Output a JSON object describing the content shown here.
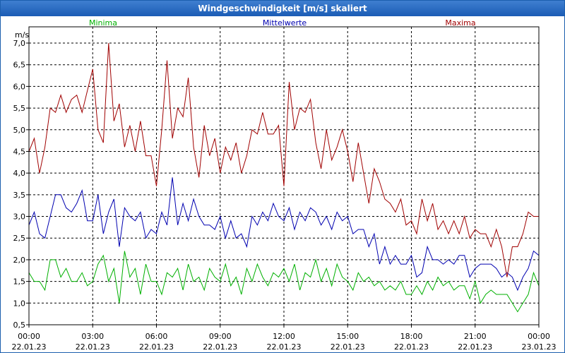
{
  "window": {
    "title": "Windgeschwindigkeit [m/s] skaliert"
  },
  "chart_data": {
    "type": "line",
    "title": "Windgeschwindigkeit [m/s] skaliert",
    "ylabel": "m/s",
    "ylim": [
      0.5,
      7.0
    ],
    "xlim": [
      0,
      24
    ],
    "y_ticks": [
      "0,5",
      "1,0",
      "1,5",
      "2,0",
      "2,5",
      "3,0",
      "3,5",
      "4,0",
      "4,5",
      "5,0",
      "5,5",
      "6,0",
      "6,5",
      "7,0"
    ],
    "x_ticks": [
      {
        "time": "00:00",
        "date": "22.01.23"
      },
      {
        "time": "03:00",
        "date": "22.01.23"
      },
      {
        "time": "06:00",
        "date": "22.01.23"
      },
      {
        "time": "09:00",
        "date": "22.01.23"
      },
      {
        "time": "12:00",
        "date": "22.01.23"
      },
      {
        "time": "15:00",
        "date": "22.01.23"
      },
      {
        "time": "18:00",
        "date": "22.01.23"
      },
      {
        "time": "21:00",
        "date": "22.01.23"
      },
      {
        "time": "00:00",
        "date": "23.01.23"
      }
    ],
    "grid": true,
    "series": [
      {
        "name": "Minima",
        "color": "#00b000",
        "x": [
          0,
          0.25,
          0.5,
          0.75,
          1,
          1.25,
          1.5,
          1.75,
          2,
          2.25,
          2.5,
          2.75,
          3,
          3.25,
          3.5,
          3.75,
          4,
          4.25,
          4.5,
          4.75,
          5,
          5.25,
          5.5,
          5.75,
          6,
          6.25,
          6.5,
          6.75,
          7,
          7.25,
          7.5,
          7.75,
          8,
          8.25,
          8.5,
          8.75,
          9,
          9.25,
          9.5,
          9.75,
          10,
          10.25,
          10.5,
          10.75,
          11,
          11.25,
          11.5,
          11.75,
          12,
          12.25,
          12.5,
          12.75,
          13,
          13.25,
          13.5,
          13.75,
          14,
          14.25,
          14.5,
          14.75,
          15,
          15.25,
          15.5,
          15.75,
          16,
          16.25,
          16.5,
          16.75,
          17,
          17.25,
          17.5,
          17.75,
          18,
          18.25,
          18.5,
          18.75,
          19,
          19.25,
          19.5,
          19.75,
          20,
          20.25,
          20.5,
          20.75,
          21,
          21.25,
          21.5,
          21.75,
          22,
          22.25,
          22.5,
          22.75,
          23,
          23.25,
          23.5,
          23.75,
          24
        ],
        "values": [
          1.7,
          1.5,
          1.5,
          1.3,
          2.0,
          2.0,
          1.6,
          1.8,
          1.5,
          1.5,
          1.7,
          1.4,
          1.5,
          1.9,
          2.1,
          1.5,
          1.8,
          1.0,
          2.2,
          1.6,
          1.8,
          1.2,
          1.9,
          1.5,
          1.5,
          1.2,
          1.7,
          1.6,
          1.8,
          1.3,
          1.9,
          1.5,
          1.6,
          1.3,
          1.8,
          1.6,
          1.5,
          1.9,
          1.4,
          1.6,
          1.2,
          1.8,
          1.5,
          1.9,
          1.6,
          1.4,
          1.7,
          1.6,
          1.8,
          1.5,
          1.9,
          1.3,
          1.7,
          1.6,
          2.0,
          1.5,
          1.8,
          1.4,
          1.9,
          1.6,
          1.5,
          1.3,
          1.7,
          1.5,
          1.6,
          1.4,
          1.5,
          1.3,
          1.4,
          1.3,
          1.5,
          1.2,
          1.2,
          1.4,
          1.2,
          1.5,
          1.3,
          1.6,
          1.4,
          1.5,
          1.3,
          1.4,
          1.4,
          1.1,
          1.5,
          1.0,
          1.2,
          1.3,
          1.2,
          1.2,
          1.2,
          1.0,
          0.8,
          1.0,
          1.2,
          1.7,
          1.4
        ]
      },
      {
        "name": "Mittelwerte",
        "color": "#0000b0",
        "x": [
          0,
          0.25,
          0.5,
          0.75,
          1,
          1.25,
          1.5,
          1.75,
          2,
          2.25,
          2.5,
          2.75,
          3,
          3.25,
          3.5,
          3.75,
          4,
          4.25,
          4.5,
          4.75,
          5,
          5.25,
          5.5,
          5.75,
          6,
          6.25,
          6.5,
          6.75,
          7,
          7.25,
          7.5,
          7.75,
          8,
          8.25,
          8.5,
          8.75,
          9,
          9.25,
          9.5,
          9.75,
          10,
          10.25,
          10.5,
          10.75,
          11,
          11.25,
          11.5,
          11.75,
          12,
          12.25,
          12.5,
          12.75,
          13,
          13.25,
          13.5,
          13.75,
          14,
          14.25,
          14.5,
          14.75,
          15,
          15.25,
          15.5,
          15.75,
          16,
          16.25,
          16.5,
          16.75,
          17,
          17.25,
          17.5,
          17.75,
          18,
          18.25,
          18.5,
          18.75,
          19,
          19.25,
          19.5,
          19.75,
          20,
          20.25,
          20.5,
          20.75,
          21,
          21.25,
          21.5,
          21.75,
          22,
          22.25,
          22.5,
          22.75,
          23,
          23.25,
          23.5,
          23.75,
          24
        ],
        "values": [
          2.8,
          3.1,
          2.6,
          2.5,
          3.0,
          3.5,
          3.5,
          3.2,
          3.1,
          3.3,
          3.6,
          2.9,
          2.9,
          3.5,
          2.6,
          3.1,
          3.4,
          2.3,
          3.2,
          3.0,
          2.9,
          3.1,
          2.5,
          2.7,
          2.6,
          3.1,
          2.8,
          3.9,
          2.8,
          3.3,
          2.9,
          3.4,
          3.0,
          2.8,
          2.8,
          2.7,
          3.0,
          2.5,
          2.9,
          2.5,
          2.6,
          2.3,
          3.0,
          2.8,
          3.1,
          2.9,
          3.3,
          3.0,
          2.9,
          3.2,
          2.7,
          3.1,
          2.9,
          3.2,
          3.1,
          2.8,
          3.0,
          2.7,
          3.1,
          2.9,
          3.0,
          2.6,
          2.7,
          2.7,
          2.3,
          2.6,
          1.9,
          2.3,
          1.9,
          2.1,
          1.9,
          1.9,
          2.1,
          1.6,
          1.7,
          2.3,
          2.0,
          2.0,
          1.9,
          2.0,
          1.9,
          2.1,
          2.1,
          1.6,
          1.8,
          1.9,
          1.9,
          1.9,
          1.8,
          1.6,
          1.7,
          1.6,
          1.3,
          1.6,
          1.8,
          2.2,
          2.1
        ]
      },
      {
        "name": "Maxima",
        "color": "#a00000",
        "x": [
          0,
          0.25,
          0.5,
          0.75,
          1,
          1.25,
          1.5,
          1.75,
          2,
          2.25,
          2.5,
          2.75,
          3,
          3.25,
          3.5,
          3.75,
          4,
          4.25,
          4.5,
          4.75,
          5,
          5.25,
          5.5,
          5.75,
          6,
          6.25,
          6.5,
          6.75,
          7,
          7.25,
          7.5,
          7.75,
          8,
          8.25,
          8.5,
          8.75,
          9,
          9.25,
          9.5,
          9.75,
          10,
          10.25,
          10.5,
          10.75,
          11,
          11.25,
          11.5,
          11.75,
          12,
          12.25,
          12.5,
          12.75,
          13,
          13.25,
          13.5,
          13.75,
          14,
          14.25,
          14.5,
          14.75,
          15,
          15.25,
          15.5,
          15.75,
          16,
          16.25,
          16.5,
          16.75,
          17,
          17.25,
          17.5,
          17.75,
          18,
          18.25,
          18.5,
          18.75,
          19,
          19.25,
          19.5,
          19.75,
          20,
          20.25,
          20.5,
          20.75,
          21,
          21.25,
          21.5,
          21.75,
          22,
          22.25,
          22.5,
          22.75,
          23,
          23.25,
          23.5,
          23.75,
          24
        ],
        "values": [
          4.5,
          4.8,
          4.0,
          4.6,
          5.5,
          5.4,
          5.8,
          5.4,
          5.7,
          5.8,
          5.4,
          5.9,
          6.4,
          5.0,
          4.7,
          7.0,
          5.2,
          5.6,
          4.6,
          5.1,
          4.5,
          5.2,
          4.4,
          4.4,
          3.7,
          5.0,
          6.6,
          4.8,
          5.5,
          5.3,
          6.2,
          4.6,
          3.9,
          5.1,
          4.4,
          4.8,
          4.0,
          4.6,
          4.3,
          4.7,
          4.0,
          4.4,
          5.0,
          4.9,
          5.4,
          4.9,
          4.9,
          5.1,
          3.7,
          6.1,
          5.0,
          5.5,
          5.4,
          5.7,
          4.7,
          4.1,
          5.0,
          4.3,
          4.6,
          5.0,
          4.5,
          3.8,
          4.7,
          4.0,
          3.3,
          4.1,
          3.8,
          3.4,
          3.3,
          3.1,
          3.4,
          2.8,
          2.9,
          2.6,
          3.4,
          2.9,
          3.3,
          2.7,
          2.9,
          2.6,
          2.9,
          2.6,
          3.0,
          2.5,
          2.7,
          2.6,
          2.6,
          2.3,
          2.7,
          2.3,
          1.6,
          2.3,
          2.3,
          2.6,
          3.1,
          3.0,
          3.0
        ]
      }
    ]
  }
}
